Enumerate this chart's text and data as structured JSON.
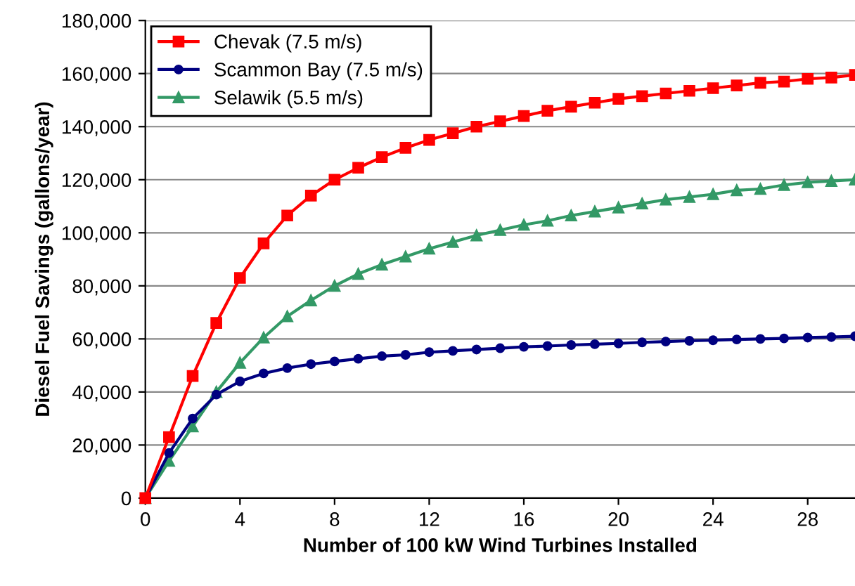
{
  "chart_data": {
    "type": "line",
    "xlabel": "Number of 100 kW Wind Turbines Installed",
    "ylabel": "Diesel Fuel Savings (gallons/year)",
    "x": [
      0,
      1,
      2,
      3,
      4,
      5,
      6,
      7,
      8,
      9,
      10,
      11,
      12,
      13,
      14,
      15,
      16,
      17,
      18,
      19,
      20,
      21,
      22,
      23,
      24,
      25,
      26,
      27,
      28,
      29,
      30
    ],
    "series": [
      {
        "name": "Chevak (7.5 m/s)",
        "color": "#ff0000",
        "marker": "square",
        "values": [
          0,
          23000,
          46000,
          66000,
          83000,
          96000,
          106500,
          114000,
          120000,
          124500,
          128500,
          132000,
          135000,
          137500,
          140000,
          142000,
          144000,
          146000,
          147500,
          149000,
          150500,
          151500,
          152500,
          153500,
          154500,
          155500,
          156500,
          157000,
          158000,
          158500,
          159500
        ]
      },
      {
        "name": "Scammon Bay (7.5 m/s)",
        "color": "#000080",
        "marker": "circle",
        "values": [
          0,
          17000,
          30000,
          39000,
          44000,
          47000,
          49000,
          50500,
          51500,
          52500,
          53500,
          54000,
          55000,
          55500,
          56000,
          56500,
          57000,
          57300,
          57700,
          58000,
          58300,
          58700,
          59000,
          59300,
          59500,
          59800,
          60000,
          60200,
          60500,
          60700,
          61000
        ]
      },
      {
        "name": "Selawik (5.5 m/s)",
        "color": "#339966",
        "marker": "triangle",
        "values": [
          0,
          14000,
          27000,
          40000,
          51000,
          60500,
          68500,
          74500,
          80000,
          84500,
          88000,
          91000,
          94000,
          96500,
          99000,
          101000,
          103000,
          104500,
          106500,
          108000,
          109500,
          111000,
          112500,
          113500,
          114500,
          116000,
          116500,
          118000,
          119000,
          119500,
          120000
        ]
      }
    ],
    "xlim": [
      0,
      30
    ],
    "xticks": [
      0,
      4,
      8,
      12,
      16,
      20,
      24,
      28
    ],
    "ylim": [
      0,
      180000
    ],
    "yticks": [
      {
        "value": 0,
        "label": "0"
      },
      {
        "value": 20000,
        "label": "20,000"
      },
      {
        "value": 40000,
        "label": "40,000"
      },
      {
        "value": 60000,
        "label": "60,000"
      },
      {
        "value": 80000,
        "label": "80,000"
      },
      {
        "value": 100000,
        "label": "100,000"
      },
      {
        "value": 120000,
        "label": "120,000"
      },
      {
        "value": 140000,
        "label": "140,000"
      },
      {
        "value": 160000,
        "label": "160,000"
      },
      {
        "value": 180000,
        "label": "180,000"
      }
    ],
    "grid": "y",
    "legend": "top left",
    "line_style": "solid"
  }
}
